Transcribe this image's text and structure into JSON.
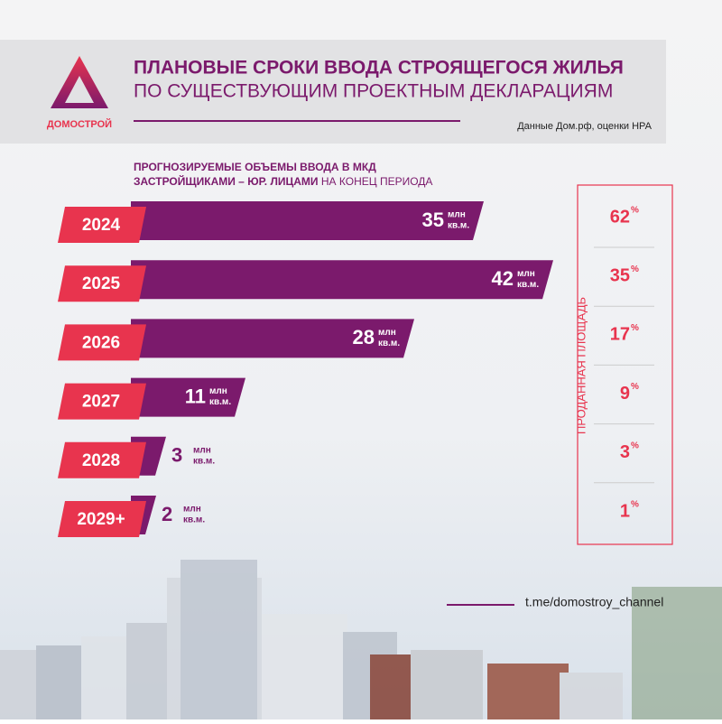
{
  "logo": {
    "text": "ДОМОСТРОЙ"
  },
  "header": {
    "title": "ПЛАНОВЫЕ СРОКИ ВВОДА СТРОЯЩЕГОСЯ ЖИЛЬЯ",
    "subtitle": "ПО СУЩЕСТВУЮЩИМ ПРОЕКТНЫМ ДЕКЛАРАЦИЯМ",
    "source": "Данные Дом.рф, оценки НРА"
  },
  "chart_data": {
    "type": "bar",
    "orientation": "horizontal",
    "title_lines": [
      "ПРОГНОЗИРУЕМЫЕ ОБЪЕМЫ ВВОДА В МКД",
      "ЗАСТРОЙЩИКАМИ – ЮР. ЛИЦАМИ",
      "НА КОНЕЦ ПЕРИОДА"
    ],
    "categories": [
      "2024",
      "2025",
      "2026",
      "2027",
      "2028",
      "2029+"
    ],
    "values": [
      35,
      42,
      28,
      11,
      3,
      2
    ],
    "value_unit": [
      "млн",
      "кв.м."
    ],
    "color": "#7b1a6c",
    "category_color": "#e8344e",
    "sold_area": {
      "name": "ПРОДАННАЯ ПЛОЩАДЬ",
      "values": [
        62,
        35,
        17,
        9,
        3,
        1
      ],
      "unit": "%",
      "color": "#e8344e"
    }
  },
  "footer": {
    "link": "t.me/domostroy_channel"
  }
}
